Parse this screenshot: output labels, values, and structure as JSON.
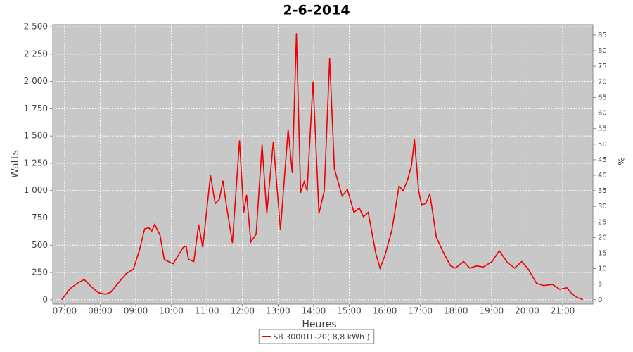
{
  "chart_data": {
    "type": "line",
    "title": "2-6-2014",
    "x_label": "Heures",
    "y_label": "Watts",
    "y2_label": "%",
    "x": [
      "06:55",
      "07:09",
      "07:21",
      "07:33",
      "07:45",
      "07:57",
      "08:09",
      "08:18",
      "08:33",
      "08:44",
      "08:56",
      "09:06",
      "09:15",
      "09:22",
      "09:27",
      "09:32",
      "09:41",
      "09:48",
      "09:55",
      "10:03",
      "10:20",
      "10:25",
      "10:29",
      "10:38",
      "10:46",
      "10:53",
      "11:06",
      "11:14",
      "11:21",
      "11:27",
      "11:33",
      "11:43",
      "11:55",
      "12:02",
      "12:07",
      "12:14",
      "12:23",
      "12:33",
      "12:41",
      "12:52",
      "13:04",
      "13:17",
      "13:24",
      "13:31",
      "13:38",
      "13:44",
      "13:49",
      "13:59",
      "14:09",
      "14:18",
      "14:27",
      "14:35",
      "14:48",
      "14:57",
      "15:08",
      "15:17",
      "15:24",
      "15:32",
      "15:45",
      "15:52",
      "16:00",
      "16:12",
      "16:24",
      "16:31",
      "16:38",
      "16:45",
      "16:50",
      "16:57",
      "17:02",
      "17:09",
      "17:16",
      "17:27",
      "17:40",
      "17:51",
      "17:59",
      "18:13",
      "18:23",
      "18:35",
      "18:46",
      "19:01",
      "19:13",
      "19:27",
      "19:39",
      "19:51",
      "20:02",
      "20:16",
      "20:28",
      "20:43",
      "20:55",
      "21:07",
      "21:16",
      "21:25",
      "21:34"
    ],
    "series": [
      {
        "name": "SB 3000TL-20( 8,8 kWh )",
        "color": "#ee0000",
        "values": [
          0,
          100,
          150,
          185,
          120,
          65,
          50,
          70,
          170,
          240,
          280,
          450,
          650,
          660,
          630,
          690,
          590,
          370,
          350,
          330,
          480,
          490,
          370,
          350,
          690,
          480,
          1140,
          880,
          920,
          1090,
          860,
          520,
          1460,
          800,
          960,
          530,
          600,
          1420,
          790,
          1450,
          640,
          1560,
          1160,
          2440,
          980,
          1080,
          1000,
          2000,
          790,
          1000,
          2210,
          1200,
          950,
          1010,
          800,
          840,
          760,
          800,
          420,
          290,
          400,
          640,
          1040,
          1000,
          1090,
          1230,
          1470,
          1000,
          870,
          880,
          970,
          570,
          420,
          310,
          290,
          350,
          290,
          310,
          300,
          350,
          450,
          340,
          290,
          350,
          280,
          150,
          130,
          140,
          95,
          110,
          50,
          20,
          0
        ]
      }
    ],
    "xlim": [
      "06:40",
      "21:51"
    ],
    "xticks": [
      "07:00",
      "08:00",
      "09:00",
      "10:00",
      "11:00",
      "12:00",
      "13:00",
      "14:00",
      "15:00",
      "16:00",
      "17:00",
      "18:00",
      "19:00",
      "20:00",
      "21:00"
    ],
    "ylim": [
      -40,
      2520
    ],
    "yticks": [
      0,
      250,
      500,
      750,
      {
        "value": 1000,
        "label": "1 000"
      },
      {
        "value": 1250,
        "label": "1 250"
      },
      {
        "value": 1500,
        "label": "1 500"
      },
      {
        "value": 1750,
        "label": "1 750"
      },
      {
        "value": 2000,
        "label": "2 000"
      },
      {
        "value": 2250,
        "label": "2 250"
      },
      {
        "value": 2500,
        "label": "2 500"
      }
    ],
    "y2lim": [
      -1.4,
      88.4
    ],
    "y2ticks": [
      0,
      5,
      10,
      15,
      20,
      25,
      30,
      35,
      40,
      45,
      50,
      55,
      60,
      65,
      70,
      75,
      80,
      85
    ],
    "grid": true,
    "legend": "bottom"
  }
}
